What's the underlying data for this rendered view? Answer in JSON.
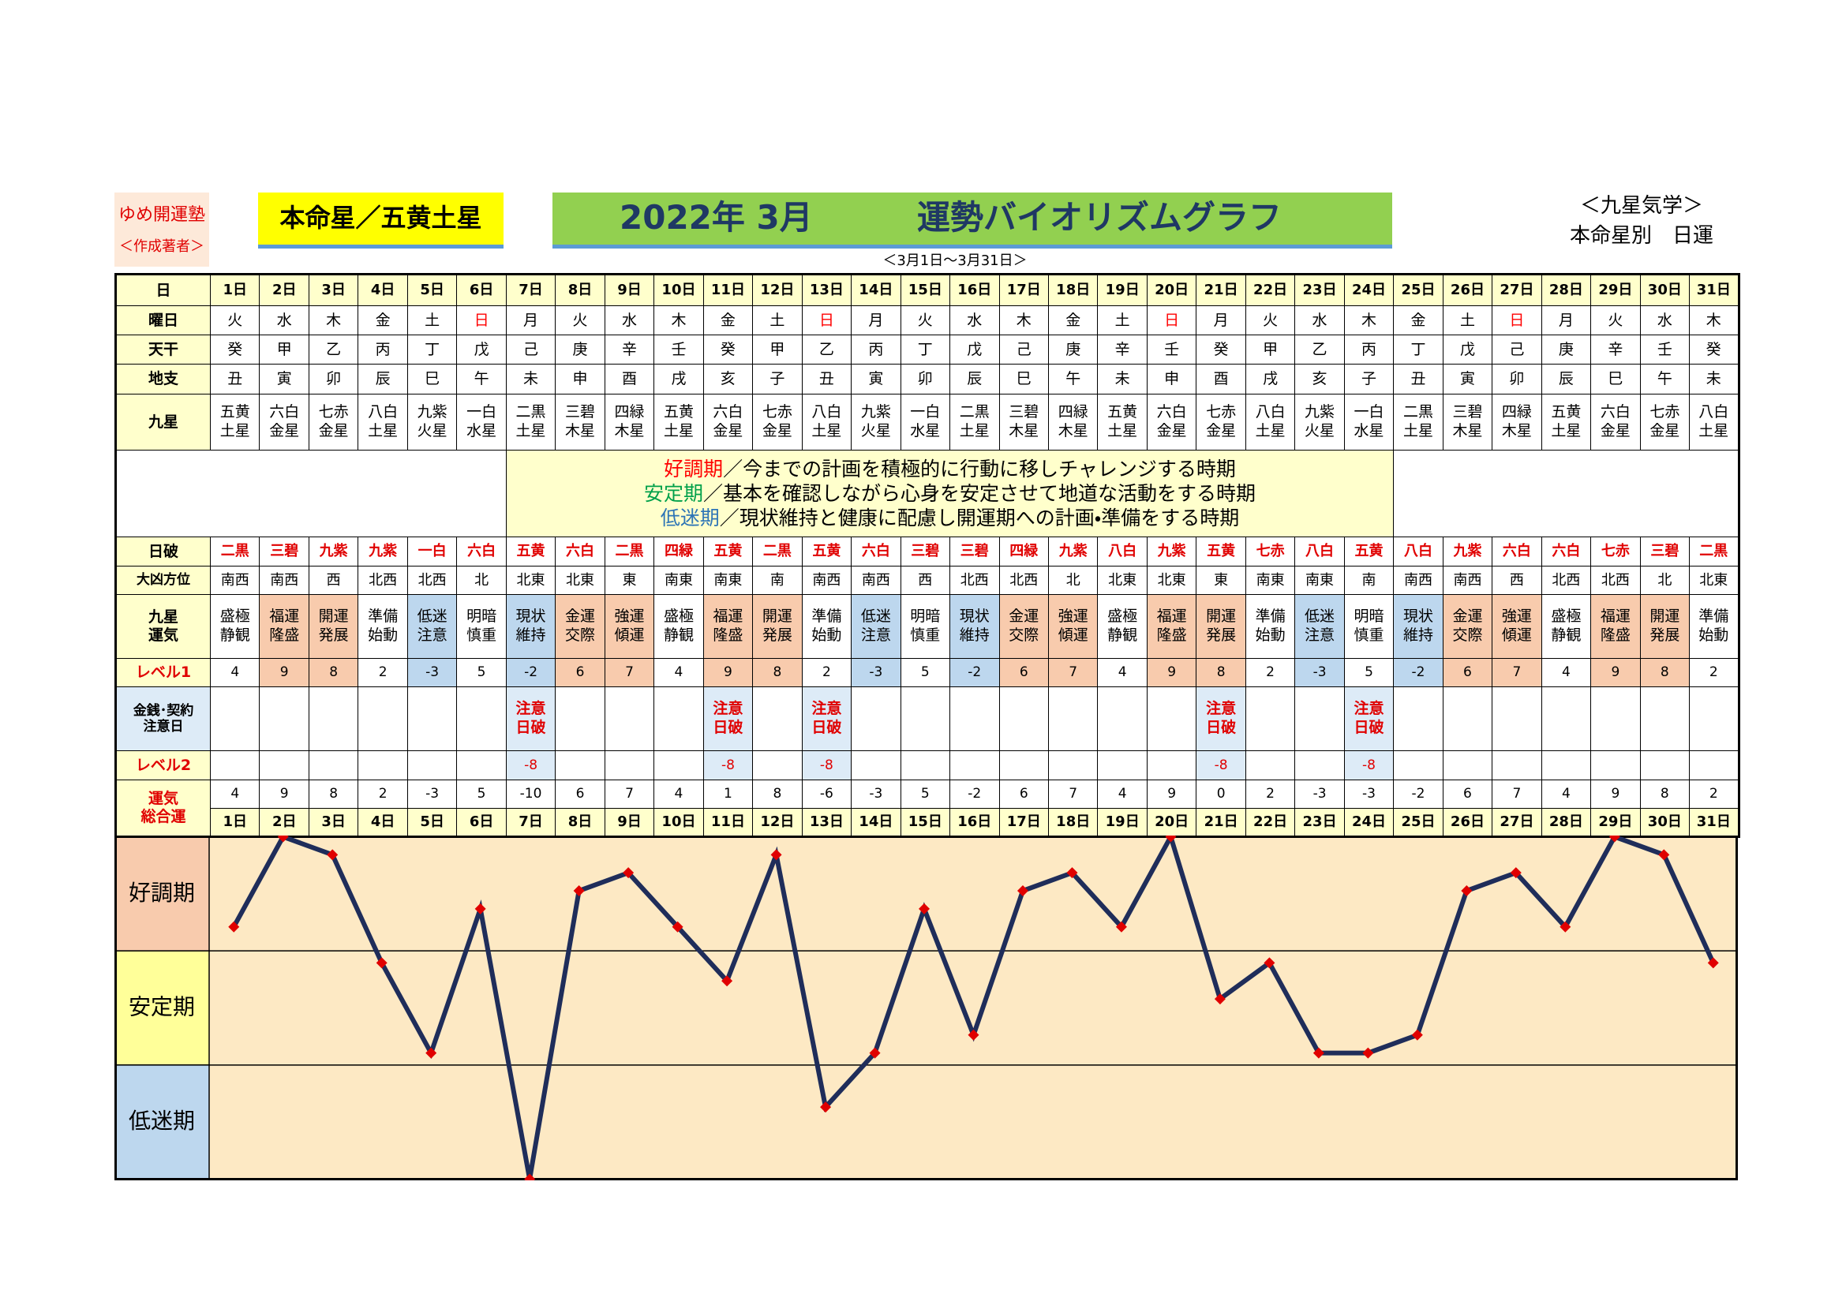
{
  "header": {
    "school": "ゆめ開運塾",
    "author": "＜作成著者＞",
    "honmei": "本命星／五黄土星",
    "month": "2022年 3月",
    "title": "運勢バイオリズムグラフ",
    "period": "＜3月1日～3月31日＞",
    "kigaku": "＜九星気学＞",
    "kind": "本命星別　日運"
  },
  "row_labels": {
    "day": "日",
    "weekday": "曜日",
    "tenkan": "天干",
    "chishi": "地支",
    "kyusei": "九星",
    "nippa": "日破",
    "daikyo": "大凶方位",
    "unki": "九星\n運気",
    "level1": "レベル1",
    "caution": "金銭･契約\n注意日",
    "level2": "レベル2",
    "total": "運気\n総合運"
  },
  "legend": [
    {
      "term": "好調期",
      "color": "#ff0000",
      "text": "／今までの計画を積極的に行動に移しチャレンジする時期"
    },
    {
      "term": "安定期",
      "color": "#00a04a",
      "text": "／基本を確認しながら心身を安定させて地道な活動をする時期"
    },
    {
      "term": "低迷期",
      "color": "#2e75b6",
      "text": "／現状維持と健康に配慮し開運期への計画・準備をする時期"
    }
  ],
  "days": [
    "1日",
    "2日",
    "3日",
    "4日",
    "5日",
    "6日",
    "7日",
    "8日",
    "9日",
    "10日",
    "11日",
    "12日",
    "13日",
    "14日",
    "15日",
    "16日",
    "17日",
    "18日",
    "19日",
    "20日",
    "21日",
    "22日",
    "23日",
    "24日",
    "25日",
    "26日",
    "27日",
    "28日",
    "29日",
    "30日",
    "31日"
  ],
  "weekday": [
    "火",
    "水",
    "木",
    "金",
    "土",
    "日",
    "月",
    "火",
    "水",
    "木",
    "金",
    "土",
    "日",
    "月",
    "火",
    "水",
    "木",
    "金",
    "土",
    "日",
    "月",
    "火",
    "水",
    "木",
    "金",
    "土",
    "日",
    "月",
    "火",
    "水",
    "木"
  ],
  "weekday_colors": [
    "#000",
    "#000",
    "#000",
    "#000",
    "#000",
    "#f00",
    "#000",
    "#000",
    "#000",
    "#000",
    "#000",
    "#000",
    "#f00",
    "#000",
    "#000",
    "#000",
    "#000",
    "#000",
    "#000",
    "#f00",
    "#000",
    "#000",
    "#000",
    "#000",
    "#000",
    "#000",
    "#f00",
    "#000",
    "#000",
    "#000",
    "#000"
  ],
  "tenkan": [
    "癸",
    "甲",
    "乙",
    "丙",
    "丁",
    "戊",
    "己",
    "庚",
    "辛",
    "壬",
    "癸",
    "甲",
    "乙",
    "丙",
    "丁",
    "戊",
    "己",
    "庚",
    "辛",
    "壬",
    "癸",
    "甲",
    "乙",
    "丙",
    "丁",
    "戊",
    "己",
    "庚",
    "辛",
    "壬",
    "癸"
  ],
  "chishi": [
    "丑",
    "寅",
    "卯",
    "辰",
    "巳",
    "午",
    "未",
    "申",
    "酉",
    "戌",
    "亥",
    "子",
    "丑",
    "寅",
    "卯",
    "辰",
    "巳",
    "午",
    "未",
    "申",
    "酉",
    "戌",
    "亥",
    "子",
    "丑",
    "寅",
    "卯",
    "辰",
    "巳",
    "午",
    "未"
  ],
  "kyusei": [
    "五黄土星",
    "六白金星",
    "七赤金星",
    "八白土星",
    "九紫火星",
    "一白水星",
    "二黒土星",
    "三碧木星",
    "四緑木星",
    "五黄土星",
    "六白金星",
    "七赤金星",
    "八白土星",
    "九紫火星",
    "一白水星",
    "二黒土星",
    "三碧木星",
    "四緑木星",
    "五黄土星",
    "六白金星",
    "七赤金星",
    "八白土星",
    "九紫火星",
    "一白水星",
    "二黒土星",
    "三碧木星",
    "四緑木星",
    "五黄土星",
    "六白金星",
    "七赤金星",
    "八白土星"
  ],
  "nippa": [
    "二黒",
    "三碧",
    "九紫",
    "九紫",
    "一白",
    "六白",
    "五黄",
    "六白",
    "二黒",
    "四緑",
    "五黄",
    "二黒",
    "五黄",
    "六白",
    "三碧",
    "三碧",
    "四緑",
    "九紫",
    "八白",
    "九紫",
    "五黄",
    "七赤",
    "八白",
    "五黄",
    "八白",
    "九紫",
    "六白",
    "六白",
    "七赤",
    "三碧",
    "二黒"
  ],
  "daikyo": [
    "南西",
    "南西",
    "西",
    "北西",
    "北西",
    "北",
    "北東",
    "北東",
    "東",
    "南東",
    "南東",
    "南",
    "南西",
    "南西",
    "西",
    "北西",
    "北西",
    "北",
    "北東",
    "北東",
    "東",
    "南東",
    "南東",
    "南",
    "南西",
    "南西",
    "西",
    "北西",
    "北西",
    "北",
    "北東"
  ],
  "unki": [
    "盛極静観",
    "福運隆盛",
    "開運発展",
    "準備始動",
    "低迷注意",
    "明暗慎重",
    "現状維持",
    "金運交際",
    "強運傾運",
    "盛極静観",
    "福運隆盛",
    "開運発展",
    "準備始動",
    "低迷注意",
    "明暗慎重",
    "現状維持",
    "金運交際",
    "強運傾運",
    "盛極静観",
    "福運隆盛",
    "開運発展",
    "準備始動",
    "低迷注意",
    "明暗慎重",
    "現状維持",
    "金運交際",
    "強運傾運",
    "盛極静観",
    "福運隆盛",
    "開運発展",
    "準備始動"
  ],
  "unki_fill": [
    "#fff",
    "#f8cbad",
    "#f8cbad",
    "#fff",
    "#bdd7ee",
    "#fff",
    "#bdd7ee",
    "#f8cbad",
    "#f8cbad",
    "#fff",
    "#f8cbad",
    "#f8cbad",
    "#fff",
    "#bdd7ee",
    "#fff",
    "#bdd7ee",
    "#f8cbad",
    "#f8cbad",
    "#fff",
    "#f8cbad",
    "#f8cbad",
    "#fff",
    "#bdd7ee",
    "#fff",
    "#bdd7ee",
    "#f8cbad",
    "#f8cbad",
    "#fff",
    "#f8cbad",
    "#f8cbad",
    "#fff"
  ],
  "level1": [
    4,
    9,
    8,
    2,
    -3,
    5,
    -2,
    6,
    7,
    4,
    9,
    8,
    2,
    -3,
    5,
    -2,
    6,
    7,
    4,
    9,
    8,
    2,
    -3,
    5,
    -2,
    6,
    7,
    4,
    9,
    8,
    2
  ],
  "caution": [
    null,
    null,
    null,
    null,
    null,
    null,
    "注意日破",
    null,
    null,
    null,
    "注意日破",
    null,
    "注意日破",
    null,
    null,
    null,
    null,
    null,
    null,
    null,
    "注意日破",
    null,
    null,
    "注意日破",
    null,
    null,
    null,
    null,
    null,
    null,
    null
  ],
  "level2": [
    null,
    null,
    null,
    null,
    null,
    null,
    -8,
    null,
    null,
    null,
    -8,
    null,
    -8,
    null,
    null,
    null,
    null,
    null,
    null,
    null,
    -8,
    null,
    null,
    -8,
    null,
    null,
    null,
    null,
    null,
    null,
    null
  ],
  "total": [
    4,
    9,
    8,
    2,
    -3,
    5,
    -10,
    6,
    7,
    4,
    1,
    8,
    -6,
    -3,
    5,
    -2,
    6,
    7,
    4,
    9,
    0,
    2,
    -3,
    -3,
    -2,
    6,
    7,
    4,
    9,
    8,
    2
  ],
  "chart": {
    "ylim": [
      -10,
      9
    ],
    "bands": [
      {
        "label": "好調期",
        "color": "#f8cbad"
      },
      {
        "label": "安定期",
        "color": "#ffff99"
      },
      {
        "label": "低迷期",
        "color": "#bdd7ee"
      }
    ],
    "plot_bg": "#fde9c4",
    "line_color": "#1f2d5a",
    "marker_color": "#e00000"
  }
}
